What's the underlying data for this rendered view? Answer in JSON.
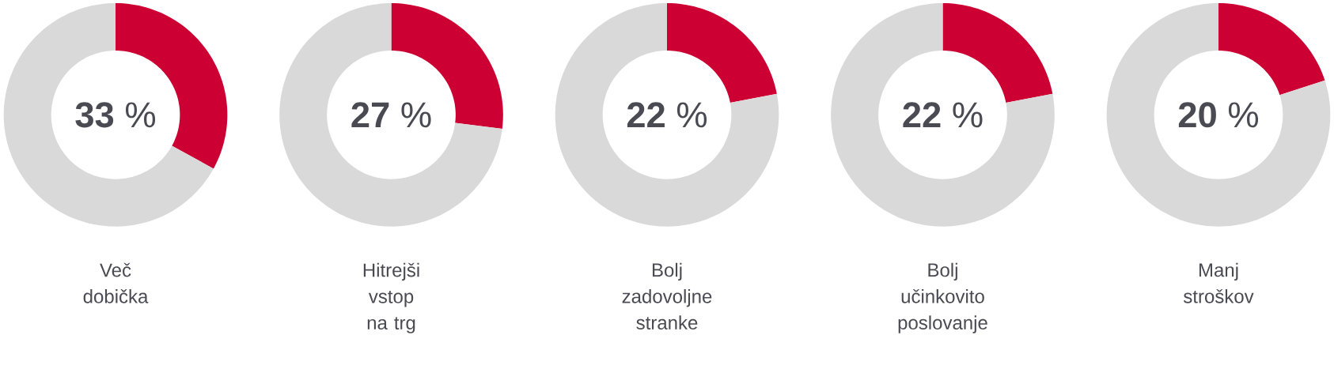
{
  "chart_data": [
    {
      "type": "donut",
      "title": "Več dobička",
      "categories": [
        null,
        null
      ],
      "values": [
        33,
        67
      ],
      "colors": [
        "#cc0033",
        "#d9d9d9"
      ],
      "annotations": [
        "**33** %"
      ]
    },
    {
      "type": "donut",
      "title": "Hitrejši vstop na trg",
      "categories": [
        null,
        null
      ],
      "values": [
        27,
        73
      ],
      "colors": [
        "#cc0033",
        "#d9d9d9"
      ],
      "annotations": [
        "**27** %"
      ]
    },
    {
      "type": "donut",
      "title": "Bolj zadovoljne stranke",
      "categories": [
        null,
        null
      ],
      "values": [
        22,
        78
      ],
      "colors": [
        "#cc0033",
        "#d9d9d9"
      ],
      "annotations": [
        "**22** %"
      ]
    },
    {
      "type": "donut",
      "title": "Bolj učinkovito poslovanje",
      "categories": [
        null,
        null
      ],
      "values": [
        22,
        78
      ],
      "colors": [
        "#cc0033",
        "#d9d9d9"
      ],
      "annotations": [
        "**22** %"
      ]
    },
    {
      "type": "donut",
      "title": "Manj stroškov",
      "categories": [
        null,
        null
      ],
      "values": [
        20,
        80
      ],
      "colors": [
        "#cc0033",
        "#d9d9d9"
      ],
      "annotations": [
        "**20** %"
      ]
    }
  ]
}
